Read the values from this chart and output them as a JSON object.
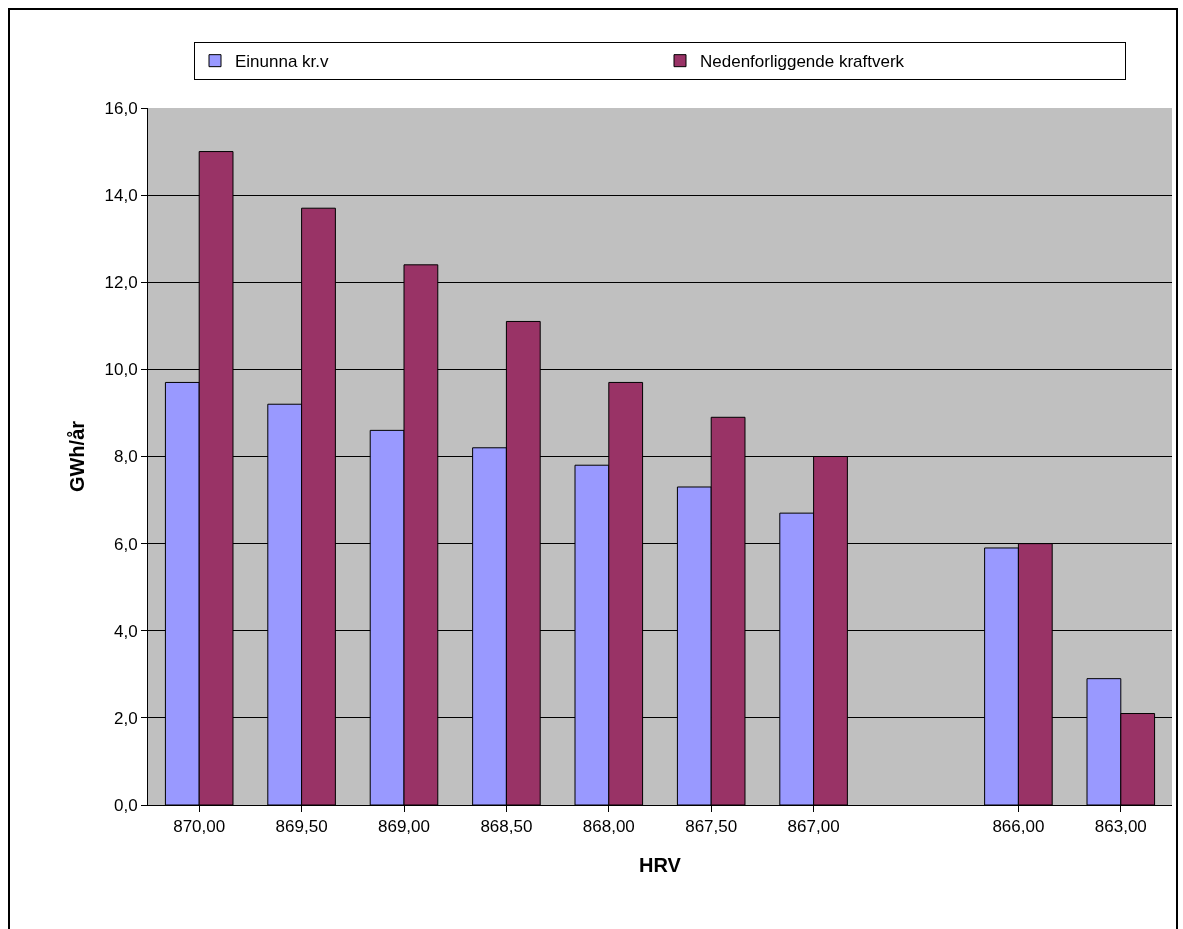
{
  "chart_data": {
    "type": "bar",
    "xlabel": "HRV",
    "ylabel": "GWh/år",
    "categories": [
      "870,00",
      "869,50",
      "869,00",
      "868,50",
      "868,00",
      "867,50",
      "867,00",
      null,
      "866,00",
      "863,00"
    ],
    "series": [
      {
        "name": "Einunna kr.v",
        "color": "#9999ff",
        "values": [
          9.7,
          9.2,
          8.6,
          8.2,
          7.8,
          7.3,
          6.7,
          null,
          5.9,
          2.9
        ]
      },
      {
        "name": "Nedenforliggende kraftverk",
        "color": "#993366",
        "values": [
          15.0,
          13.7,
          12.4,
          11.1,
          9.7,
          8.9,
          8.0,
          null,
          6.0,
          2.1
        ]
      }
    ],
    "ylim": [
      0,
      16
    ],
    "yticks": [
      {
        "value": 0,
        "label": "0,0"
      },
      {
        "value": 2,
        "label": "2,0"
      },
      {
        "value": 4,
        "label": "4,0"
      },
      {
        "value": 6,
        "label": "6,0"
      },
      {
        "value": 8,
        "label": "8,0"
      },
      {
        "value": 10,
        "label": "10,0"
      },
      {
        "value": 12,
        "label": "12,0"
      },
      {
        "value": 14,
        "label": "14,0"
      },
      {
        "value": 16,
        "label": "16,0"
      }
    ],
    "grid": "y",
    "legend": "top"
  }
}
